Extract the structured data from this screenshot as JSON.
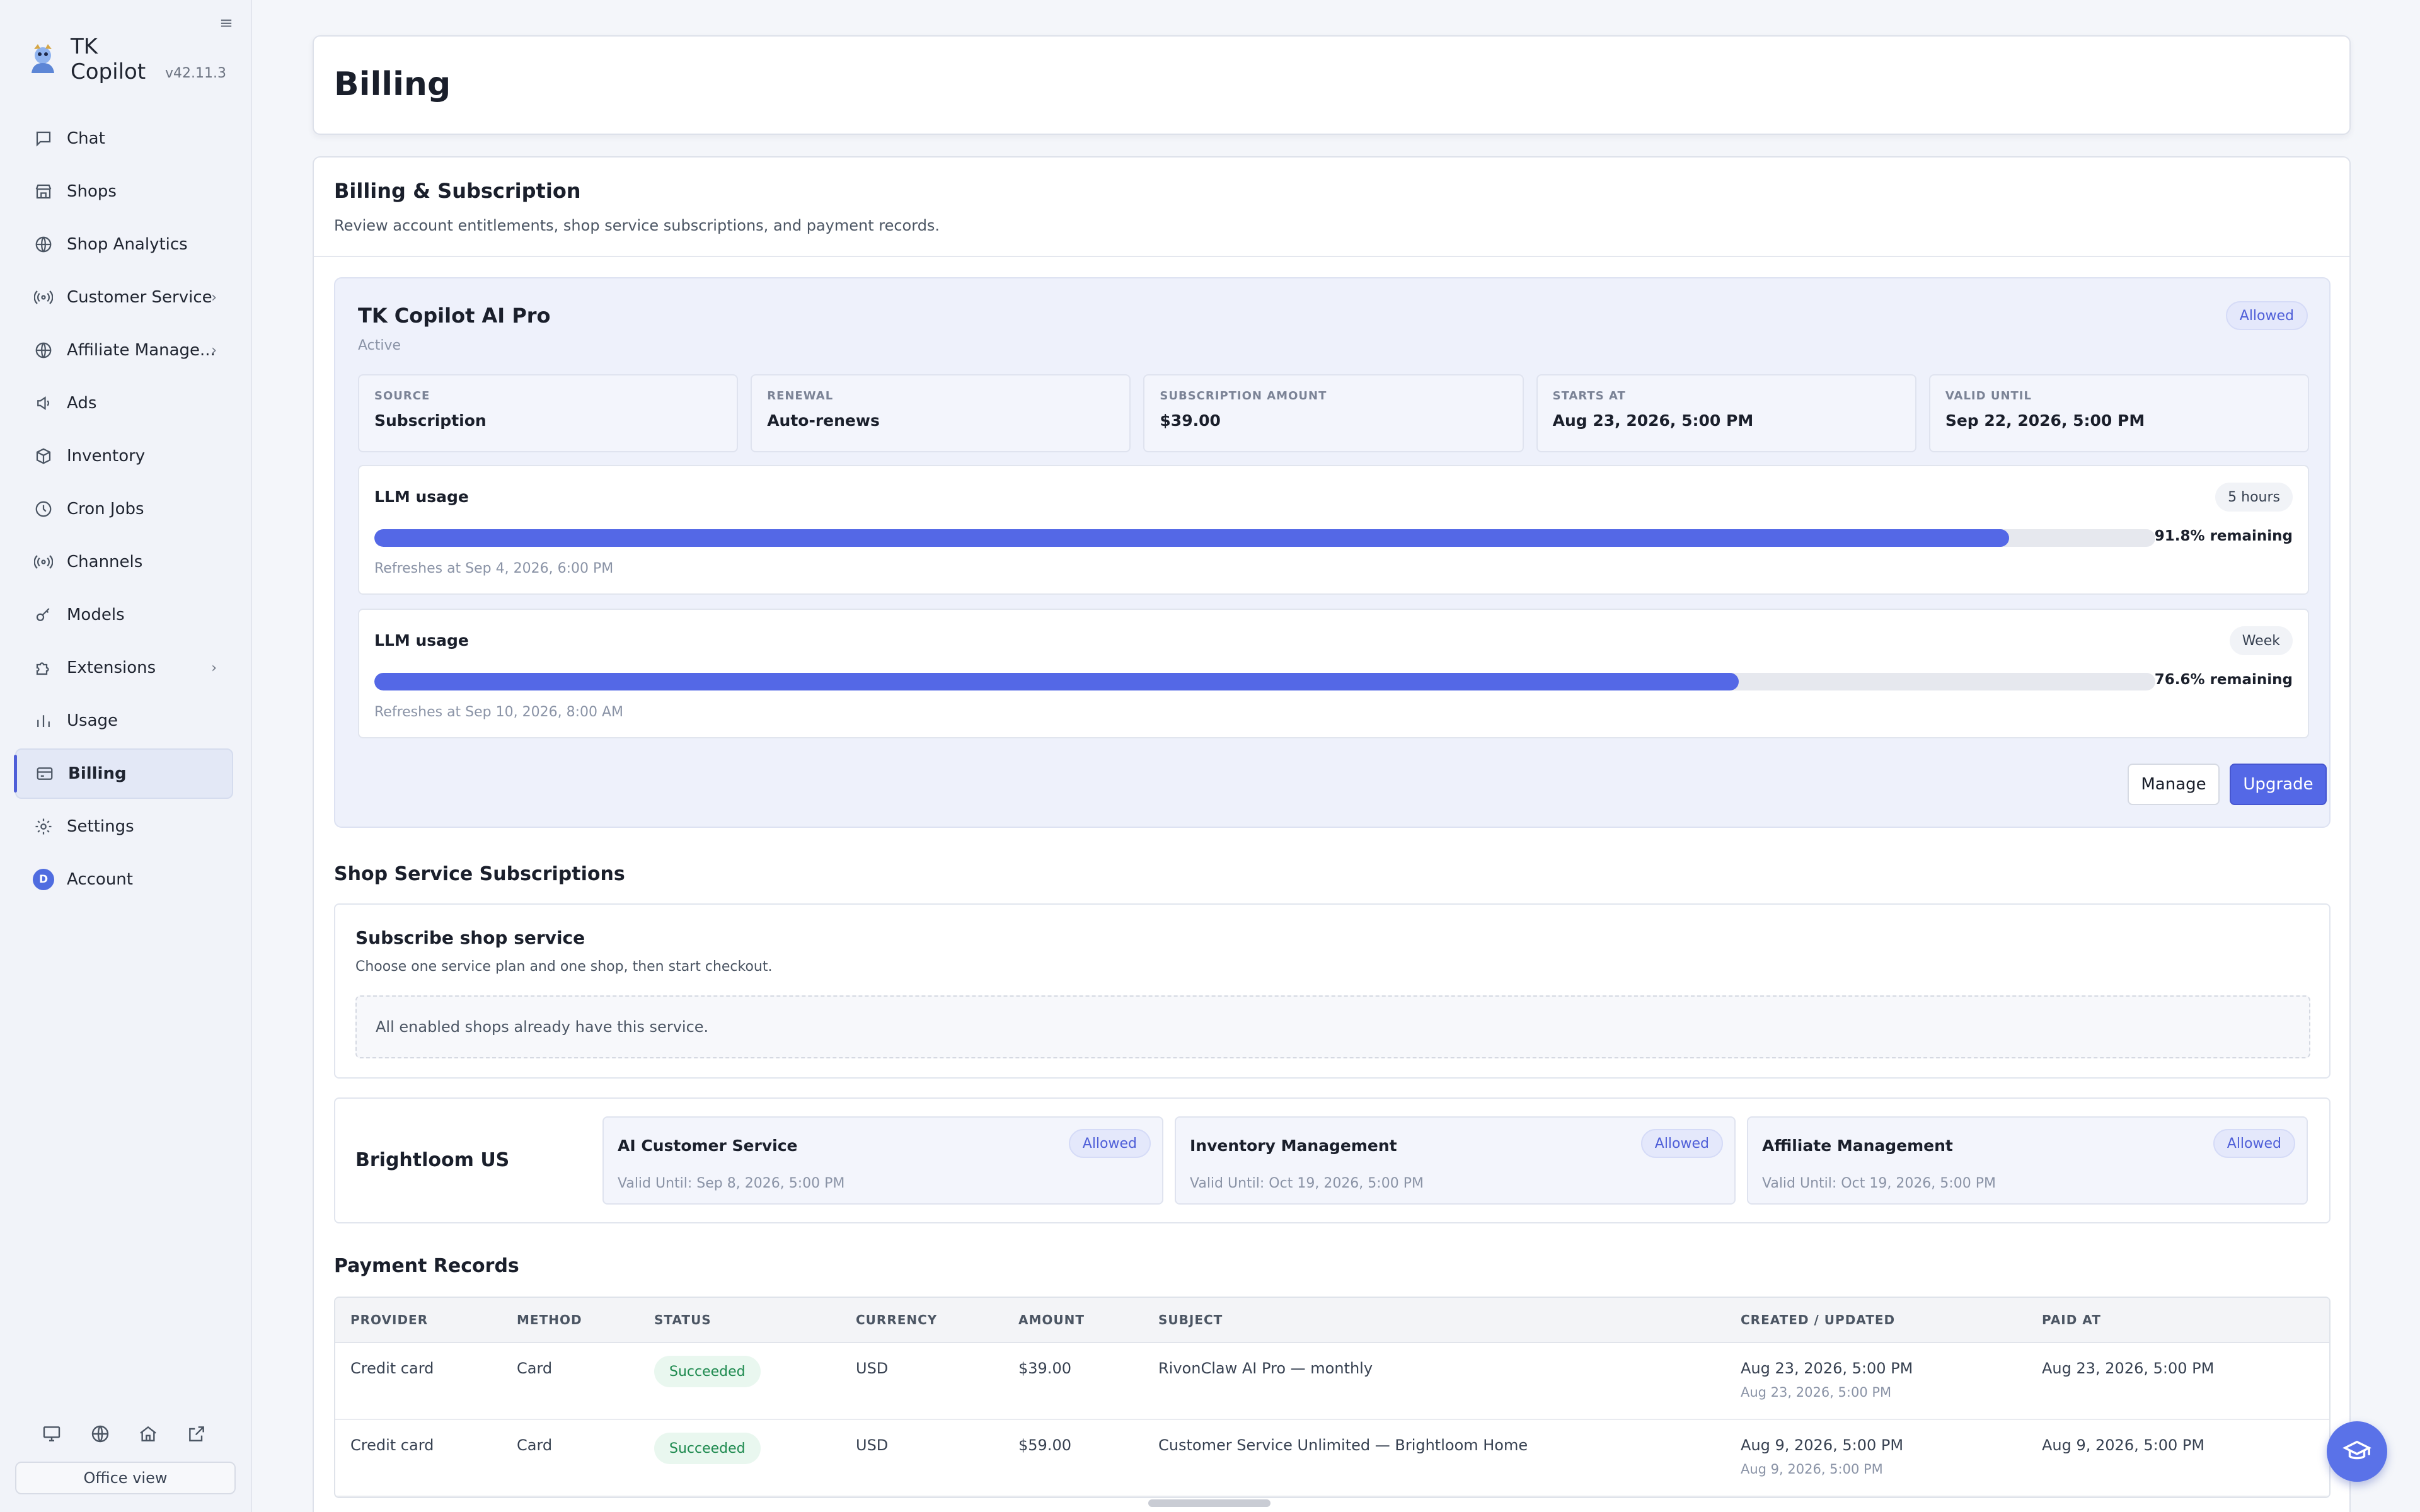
{
  "app": {
    "name": "TK Copilot",
    "version": "v42.11.3"
  },
  "sidebar": {
    "items": [
      {
        "label": "Chat",
        "icon": "chat-icon",
        "chevron": false
      },
      {
        "label": "Shops",
        "icon": "store-icon",
        "chevron": false
      },
      {
        "label": "Shop Analytics",
        "icon": "globe-icon",
        "chevron": false
      },
      {
        "label": "Customer Service",
        "icon": "broadcast-icon",
        "chevron": true
      },
      {
        "label": "Affiliate Manage...",
        "icon": "globe-icon",
        "chevron": true
      },
      {
        "label": "Ads",
        "icon": "megaphone-icon",
        "chevron": false
      },
      {
        "label": "Inventory",
        "icon": "box-icon",
        "chevron": false
      },
      {
        "label": "Cron Jobs",
        "icon": "clock-icon",
        "chevron": false
      },
      {
        "label": "Channels",
        "icon": "broadcast-icon",
        "chevron": false
      },
      {
        "label": "Models",
        "icon": "key-icon",
        "chevron": false
      },
      {
        "label": "Extensions",
        "icon": "puzzle-icon",
        "chevron": true
      },
      {
        "label": "Usage",
        "icon": "bar-chart-icon",
        "chevron": false
      },
      {
        "label": "Billing",
        "icon": "credit-card-icon",
        "chevron": false,
        "active": true
      },
      {
        "label": "Settings",
        "icon": "gear-icon",
        "chevron": false
      },
      {
        "label": "Account",
        "icon": "avatar",
        "avatar_letter": "D",
        "chevron": false
      }
    ],
    "bottom_icons": [
      "monitor-icon",
      "globe-icon",
      "home-icon",
      "external-link-icon"
    ],
    "office_view_label": "Office view"
  },
  "page": {
    "title": "Billing"
  },
  "billing": {
    "title": "Billing & Subscription",
    "subtitle": "Review account entitlements, shop service subscriptions, and payment records.",
    "plan": {
      "name": "TK Copilot AI Pro",
      "status": "Active",
      "badge": "Allowed",
      "info": [
        {
          "label": "SOURCE",
          "value": "Subscription"
        },
        {
          "label": "RENEWAL",
          "value": "Auto-renews"
        },
        {
          "label": "SUBSCRIPTION AMOUNT",
          "value": "$39.00"
        },
        {
          "label": "STARTS AT",
          "value": "Aug 23, 2026, 5:00 PM"
        },
        {
          "label": "VALID UNTIL",
          "value": "Sep 22, 2026, 5:00 PM"
        }
      ],
      "usage": [
        {
          "title": "LLM usage",
          "window": "5 hours",
          "fill_percent": 91.8,
          "remaining_text": "91.8% remaining",
          "refresh": "Refreshes at Sep 4, 2026, 6:00 PM"
        },
        {
          "title": "LLM usage",
          "window": "Week",
          "fill_percent": 76.6,
          "remaining_text": "76.6% remaining",
          "refresh": "Refreshes at Sep 10, 2026, 8:00 AM"
        }
      ],
      "manage_label": "Manage",
      "upgrade_label": "Upgrade"
    },
    "shop_services": {
      "title": "Shop Service Subscriptions",
      "subscribe_title": "Subscribe shop service",
      "subscribe_sub": "Choose one service plan and one shop, then start checkout.",
      "empty_message": "All enabled shops already have this service.",
      "shop_name": "Brightloom US",
      "services": [
        {
          "name": "AI Customer Service",
          "badge": "Allowed",
          "valid": "Valid Until: Sep 8, 2026, 5:00 PM"
        },
        {
          "name": "Inventory Management",
          "badge": "Allowed",
          "valid": "Valid Until: Oct 19, 2026, 5:00 PM"
        },
        {
          "name": "Affiliate Management",
          "badge": "Allowed",
          "valid": "Valid Until: Oct 19, 2026, 5:00 PM"
        }
      ]
    },
    "payments": {
      "title": "Payment Records",
      "columns": [
        "PROVIDER",
        "METHOD",
        "STATUS",
        "CURRENCY",
        "AMOUNT",
        "SUBJECT",
        "CREATED / UPDATED",
        "PAID AT"
      ],
      "rows": [
        {
          "provider": "Credit card",
          "method": "Card",
          "status": "Succeeded",
          "currency": "USD",
          "amount": "$39.00",
          "subject": "RivonClaw AI Pro — monthly",
          "created": "Aug 23, 2026, 5:00 PM",
          "updated": "Aug 23, 2026, 5:00 PM",
          "paid_at": "Aug 23, 2026, 5:00 PM"
        },
        {
          "provider": "Credit card",
          "method": "Card",
          "status": "Succeeded",
          "currency": "USD",
          "amount": "$59.00",
          "subject": "Customer Service Unlimited — Brightloom Home",
          "created": "Aug 9, 2026, 5:00 PM",
          "updated": "Aug 9, 2026, 5:00 PM",
          "paid_at": "Aug 9, 2026, 5:00 PM"
        }
      ]
    }
  },
  "colors": {
    "accent": "#5468e6",
    "success": "#1e8a4f",
    "badge_text": "#4f5fd8"
  }
}
